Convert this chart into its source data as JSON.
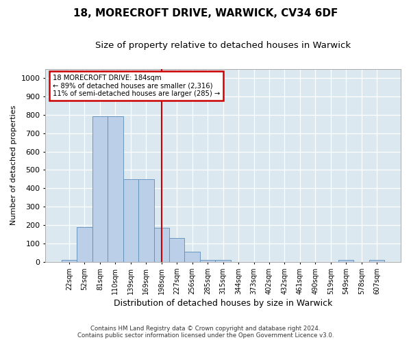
{
  "title": "18, MORECROFT DRIVE, WARWICK, CV34 6DF",
  "subtitle": "Size of property relative to detached houses in Warwick",
  "xlabel": "Distribution of detached houses by size in Warwick",
  "ylabel": "Number of detached properties",
  "bin_labels": [
    "22sqm",
    "52sqm",
    "81sqm",
    "110sqm",
    "139sqm",
    "169sqm",
    "198sqm",
    "227sqm",
    "256sqm",
    "285sqm",
    "315sqm",
    "344sqm",
    "373sqm",
    "402sqm",
    "432sqm",
    "461sqm",
    "490sqm",
    "519sqm",
    "549sqm",
    "578sqm",
    "607sqm"
  ],
  "bar_heights": [
    10,
    190,
    790,
    790,
    450,
    450,
    185,
    130,
    55,
    10,
    10,
    0,
    0,
    0,
    0,
    0,
    0,
    0,
    10,
    0,
    10
  ],
  "bar_color": "#BBCFE8",
  "bar_edge_color": "#5B8DB8",
  "vline_x_index": 6,
  "vline_color": "#cc0000",
  "ylim": [
    0,
    1050
  ],
  "yticks": [
    0,
    100,
    200,
    300,
    400,
    500,
    600,
    700,
    800,
    900,
    1000
  ],
  "annotation_line1": "18 MORECROFT DRIVE: 184sqm",
  "annotation_line2": "← 89% of detached houses are smaller (2,316)",
  "annotation_line3": "11% of semi-detached houses are larger (285) →",
  "annotation_box_facecolor": "#ffffff",
  "annotation_box_edgecolor": "#cc0000",
  "background_color": "#dce8f0",
  "grid_color": "#ffffff",
  "fig_background": "#ffffff",
  "title_fontsize": 11,
  "subtitle_fontsize": 9.5,
  "footer": "Contains HM Land Registry data © Crown copyright and database right 2024.\nContains public sector information licensed under the Open Government Licence v3.0."
}
